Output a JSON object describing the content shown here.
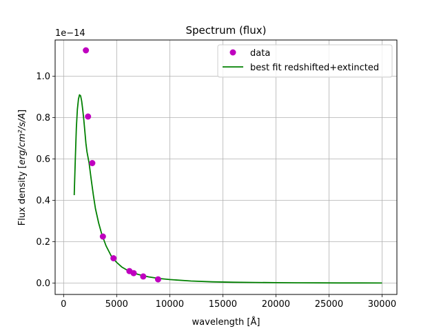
{
  "chart_data": {
    "type": "scatter",
    "title": "Spectrum (flux)",
    "xlabel": "wavelength [Å]",
    "ylabel_prefix": "Flux density [",
    "ylabel_suffix": "]",
    "ylabel_math": "erg/cm²/s/A",
    "y_offset_text": "1e−14",
    "xlim": [
      -800,
      31400
    ],
    "ylim": [
      -0.055,
      1.175
    ],
    "x_ticks": [
      0,
      5000,
      10000,
      15000,
      20000,
      25000,
      30000
    ],
    "x_tick_labels": [
      "0",
      "5000",
      "10000",
      "15000",
      "20000",
      "25000",
      "30000"
    ],
    "y_ticks": [
      0.0,
      0.2,
      0.4,
      0.6,
      0.8,
      1.0
    ],
    "y_tick_labels": [
      "0.0",
      "0.2",
      "0.4",
      "0.6",
      "0.8",
      "1.0"
    ],
    "grid": true,
    "legend_position": "top-right",
    "series": [
      {
        "name": "data",
        "kind": "scatter",
        "color": "#bf00bf",
        "x": [
          2100,
          2300,
          2700,
          3700,
          4700,
          6200,
          6600,
          7500,
          8900
        ],
        "y": [
          1.125,
          0.805,
          0.58,
          0.225,
          0.12,
          0.058,
          0.048,
          0.032,
          0.018
        ]
      },
      {
        "name": "best fit redshifted+extincted",
        "kind": "line",
        "color": "#008000",
        "x": [
          1000,
          1100,
          1200,
          1300,
          1400,
          1500,
          1600,
          1700,
          1800,
          1900,
          2000,
          2100,
          2200,
          2400,
          2600,
          2800,
          3000,
          3300,
          3600,
          4000,
          4500,
          5000,
          5500,
          6000,
          7000,
          8000,
          9000,
          10000,
          12000,
          14000,
          16000,
          18000,
          20000,
          22000,
          24000,
          26000,
          28000,
          30000
        ],
        "y": [
          0.425,
          0.6,
          0.75,
          0.84,
          0.89,
          0.91,
          0.905,
          0.88,
          0.84,
          0.79,
          0.735,
          0.675,
          0.635,
          0.58,
          0.5,
          0.425,
          0.36,
          0.29,
          0.235,
          0.18,
          0.13,
          0.1,
          0.077,
          0.062,
          0.042,
          0.03,
          0.022,
          0.017,
          0.01,
          0.006,
          0.004,
          0.003,
          0.002,
          0.0015,
          0.001,
          0.0008,
          0.0006,
          0.0005
        ]
      }
    ]
  }
}
